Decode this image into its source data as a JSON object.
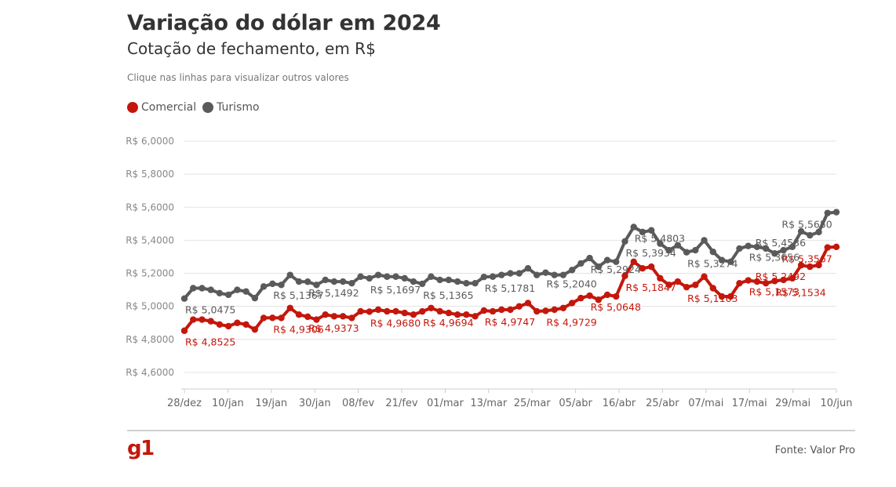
{
  "header": {
    "title": "Variação do dólar em 2024",
    "subtitle": "Cotação de fechamento, em R$",
    "hint": "Clique nas linhas para visualizar outros valores"
  },
  "legend": [
    {
      "label": "Comercial",
      "color": "#c4170c"
    },
    {
      "label": "Turismo",
      "color": "#5a5a5a"
    }
  ],
  "footer": {
    "logo": "g1",
    "source": "Fonte: Valor Pro"
  },
  "chart_data": {
    "type": "line",
    "title": "Variação do dólar em 2024",
    "subtitle": "Cotação de fechamento, em R$",
    "xlabel": "",
    "ylabel": "",
    "ylim": [
      4.5,
      6.0
    ],
    "y_ticks": [
      {
        "value": 4.6,
        "label": "R$ 4,6000"
      },
      {
        "value": 4.8,
        "label": "R$ 4,8000"
      },
      {
        "value": 5.0,
        "label": "R$ 5,0000"
      },
      {
        "value": 5.2,
        "label": "R$ 5,2000"
      },
      {
        "value": 5.4,
        "label": "R$ 5,4000"
      },
      {
        "value": 5.6,
        "label": "R$ 5,6000"
      },
      {
        "value": 5.8,
        "label": "R$ 5,8000"
      },
      {
        "value": 6.0,
        "label": "R$ 6,0000"
      }
    ],
    "x_ticks": [
      "28/dez",
      "10/jan",
      "19/jan",
      "30/jan",
      "08/fev",
      "21/fev",
      "01/mar",
      "13/mar",
      "25/mar",
      "05/abr",
      "16/abr",
      "25/abr",
      "07/mai",
      "17/mai",
      "29/mai",
      "10/jun"
    ],
    "grid": true,
    "legend_position": "top-left",
    "series": [
      {
        "name": "Comercial",
        "color": "#c4170c",
        "values": [
          4.8525,
          4.92,
          4.92,
          4.91,
          4.89,
          4.88,
          4.9,
          4.89,
          4.86,
          4.93,
          4.9306,
          4.93,
          4.99,
          4.95,
          4.9373,
          4.92,
          4.95,
          4.94,
          4.94,
          4.93,
          4.97,
          4.968,
          4.98,
          4.97,
          4.97,
          4.96,
          4.95,
          4.9694,
          4.99,
          4.97,
          4.96,
          4.95,
          4.95,
          4.94,
          4.9747,
          4.97,
          4.98,
          4.98,
          5.0,
          5.02,
          4.97,
          4.9729,
          4.98,
          4.99,
          5.02,
          5.05,
          5.0648,
          5.04,
          5.07,
          5.06,
          5.1847,
          5.27,
          5.23,
          5.24,
          5.17,
          5.13,
          5.15,
          5.1163,
          5.13,
          5.18,
          5.11,
          5.06,
          5.06,
          5.14,
          5.1573,
          5.15,
          5.14,
          5.1534,
          5.16,
          5.17,
          5.2492,
          5.24,
          5.25,
          5.3567,
          5.36
        ]
      },
      {
        "name": "Turismo",
        "color": "#5a5a5a",
        "values": [
          5.0475,
          5.11,
          5.11,
          5.1,
          5.08,
          5.07,
          5.1,
          5.09,
          5.05,
          5.12,
          5.1367,
          5.13,
          5.19,
          5.15,
          5.1492,
          5.13,
          5.16,
          5.15,
          5.15,
          5.14,
          5.18,
          5.1697,
          5.19,
          5.18,
          5.18,
          5.17,
          5.15,
          5.1365,
          5.18,
          5.16,
          5.16,
          5.15,
          5.14,
          5.14,
          5.1781,
          5.18,
          5.19,
          5.2,
          5.2,
          5.23,
          5.19,
          5.204,
          5.19,
          5.19,
          5.22,
          5.26,
          5.2924,
          5.24,
          5.28,
          5.27,
          5.3934,
          5.4803,
          5.45,
          5.46,
          5.38,
          5.34,
          5.37,
          5.3274,
          5.34,
          5.4,
          5.33,
          5.28,
          5.27,
          5.35,
          5.3656,
          5.36,
          5.35,
          5.32,
          5.34,
          5.36,
          5.4536,
          5.43,
          5.45,
          5.565,
          5.57
        ]
      }
    ],
    "annotations": [
      {
        "series": 0,
        "index": 0,
        "label": "R$ 4,8525"
      },
      {
        "series": 0,
        "index": 10,
        "label": "R$ 4,9306"
      },
      {
        "series": 0,
        "index": 14,
        "label": "R$ 4,9373"
      },
      {
        "series": 0,
        "index": 21,
        "label": "R$ 4,9680"
      },
      {
        "series": 0,
        "index": 27,
        "label": "R$ 4,9694"
      },
      {
        "series": 0,
        "index": 34,
        "label": "R$ 4,9747"
      },
      {
        "series": 0,
        "index": 41,
        "label": "R$ 4,9729"
      },
      {
        "series": 0,
        "index": 46,
        "label": "R$ 5,0648"
      },
      {
        "series": 0,
        "index": 50,
        "label": "R$ 5,1847"
      },
      {
        "series": 0,
        "index": 57,
        "label": "R$ 5,1163"
      },
      {
        "series": 0,
        "index": 64,
        "label": "R$ 5,1573"
      },
      {
        "series": 0,
        "index": 67,
        "label": "R$ 5,1534"
      },
      {
        "series": 0,
        "index": 70,
        "label": "R$ 5,2492"
      },
      {
        "series": 0,
        "index": 73,
        "label": "R$ 5,3567"
      },
      {
        "series": 1,
        "index": 0,
        "label": "R$ 5,0475"
      },
      {
        "series": 1,
        "index": 10,
        "label": "R$ 5,1367"
      },
      {
        "series": 1,
        "index": 14,
        "label": "R$ 5,1492"
      },
      {
        "series": 1,
        "index": 21,
        "label": "R$ 5,1697"
      },
      {
        "series": 1,
        "index": 27,
        "label": "R$ 5,1365"
      },
      {
        "series": 1,
        "index": 34,
        "label": "R$ 5,1781"
      },
      {
        "series": 1,
        "index": 41,
        "label": "R$ 5,2040"
      },
      {
        "series": 1,
        "index": 46,
        "label": "R$ 5,2924"
      },
      {
        "series": 1,
        "index": 50,
        "label": "R$ 5,3934"
      },
      {
        "series": 1,
        "index": 51,
        "label": "R$ 5,4803"
      },
      {
        "series": 1,
        "index": 57,
        "label": "R$ 5,3274"
      },
      {
        "series": 1,
        "index": 64,
        "label": "R$ 5,3656"
      },
      {
        "series": 1,
        "index": 70,
        "label": "R$ 5,4536"
      },
      {
        "series": 1,
        "index": 73,
        "label": "R$ 5,5650"
      }
    ]
  }
}
